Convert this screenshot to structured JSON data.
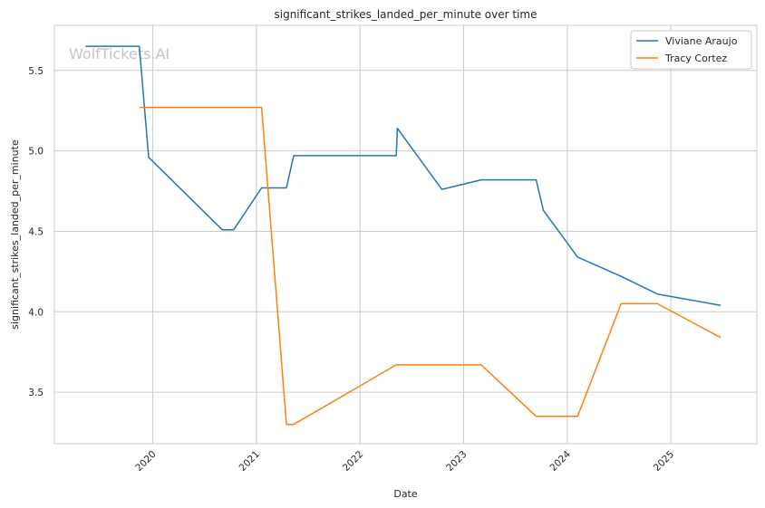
{
  "chart_data": {
    "type": "line",
    "title": "significant_strikes_landed_per_minute over time",
    "xlabel": "Date",
    "ylabel": "significant_strikes_landed_per_minute",
    "x_ticks": [
      "2020",
      "2021",
      "2022",
      "2023",
      "2024",
      "2025"
    ],
    "y_ticks": [
      "3.5",
      "4.0",
      "4.5",
      "5.0",
      "5.5"
    ],
    "xlim": [
      2019.05,
      2025.83
    ],
    "ylim": [
      3.18,
      5.78
    ],
    "grid": true,
    "legend_position": "top-right",
    "watermark": "WolfTickets.AI",
    "series": [
      {
        "name": "Viviane Araujo",
        "color": "#1f77b4",
        "x": [
          2019.35,
          2019.87,
          2019.96,
          2020.67,
          2020.78,
          2021.05,
          2021.29,
          2021.36,
          2022.35,
          2022.36,
          2022.79,
          2023.17,
          2023.7,
          2023.77,
          2024.1,
          2024.52,
          2024.87,
          2025.48
        ],
        "y": [
          5.65,
          5.65,
          4.96,
          4.51,
          4.51,
          4.77,
          4.77,
          4.97,
          4.97,
          5.14,
          4.76,
          4.82,
          4.82,
          4.63,
          4.34,
          4.22,
          4.11,
          4.04
        ]
      },
      {
        "name": "Tracy Cortez",
        "color": "#ff7f0e",
        "x": [
          2019.87,
          2021.05,
          2021.29,
          2021.36,
          2022.35,
          2023.17,
          2023.7,
          2024.1,
          2024.52,
          2024.87,
          2025.48
        ],
        "y": [
          5.27,
          5.27,
          3.3,
          3.3,
          3.67,
          3.67,
          3.35,
          3.35,
          4.05,
          4.05,
          3.84
        ]
      }
    ]
  }
}
